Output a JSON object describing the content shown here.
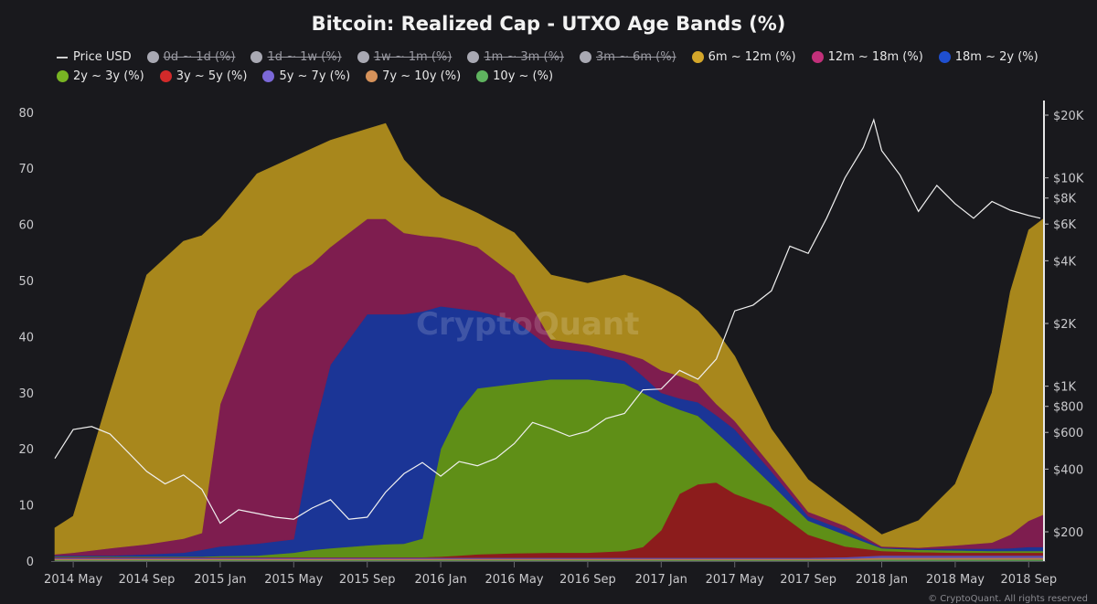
{
  "chart_data": {
    "type": "area",
    "stacked": true,
    "title": "Bitcoin: Realized Cap - UTXO Age Bands (%)",
    "ylabel_left": "%",
    "ylim": [
      0,
      80
    ],
    "yticks_left": [
      0,
      10,
      20,
      30,
      40,
      50,
      60,
      70,
      80
    ],
    "yticks_right": [
      {
        "value": 20000,
        "label": "$20K"
      },
      {
        "value": 10000,
        "label": "$10K"
      },
      {
        "value": 8000,
        "label": "$8K"
      },
      {
        "value": 6000,
        "label": "$6K"
      },
      {
        "value": 4000,
        "label": "$4K"
      },
      {
        "value": 2000,
        "label": "$2K"
      },
      {
        "value": 1000,
        "label": "$1K"
      },
      {
        "value": 800,
        "label": "$800"
      },
      {
        "value": 600,
        "label": "$600"
      },
      {
        "value": 400,
        "label": "$400"
      },
      {
        "value": 200,
        "label": "$200"
      }
    ],
    "right_scale": "log",
    "xlim": [
      "2014-03-25",
      "2018-09-25"
    ],
    "xticks": [
      {
        "date": "2014-05-01",
        "label": "2014 May"
      },
      {
        "date": "2014-09-01",
        "label": "2014 Sep"
      },
      {
        "date": "2015-01-01",
        "label": "2015 Jan"
      },
      {
        "date": "2015-05-01",
        "label": "2015 May"
      },
      {
        "date": "2015-09-01",
        "label": "2015 Sep"
      },
      {
        "date": "2016-01-01",
        "label": "2016 Jan"
      },
      {
        "date": "2016-05-01",
        "label": "2016 May"
      },
      {
        "date": "2016-09-01",
        "label": "2016 Sep"
      },
      {
        "date": "2017-01-01",
        "label": "2017 Jan"
      },
      {
        "date": "2017-05-01",
        "label": "2017 May"
      },
      {
        "date": "2017-09-01",
        "label": "2017 Sep"
      },
      {
        "date": "2018-01-01",
        "label": "2018 Jan"
      },
      {
        "date": "2018-05-01",
        "label": "2018 May"
      },
      {
        "date": "2018-09-01",
        "label": "2018 Sep"
      }
    ],
    "legend": [
      {
        "label": "Price USD",
        "type": "line",
        "color": "#d0d0d0",
        "enabled": true
      },
      {
        "label": "0d ~ 1d (%)",
        "color": "#a9a9b3",
        "enabled": false
      },
      {
        "label": "1d ~ 1w (%)",
        "color": "#a9a9b3",
        "enabled": false
      },
      {
        "label": "1w ~ 1m (%)",
        "color": "#a9a9b3",
        "enabled": false
      },
      {
        "label": "1m ~ 3m (%)",
        "color": "#a9a9b3",
        "enabled": false
      },
      {
        "label": "3m ~ 6m (%)",
        "color": "#a9a9b3",
        "enabled": false
      },
      {
        "label": "6m ~ 12m (%)",
        "color": "#d4a62a",
        "enabled": true
      },
      {
        "label": "12m ~ 18m (%)",
        "color": "#c2307a",
        "enabled": true
      },
      {
        "label": "18m ~ 2y (%)",
        "color": "#1f4fd0",
        "enabled": true
      },
      {
        "label": "2y ~ 3y (%)",
        "color": "#78b423",
        "enabled": true
      },
      {
        "label": "3y ~ 5y (%)",
        "color": "#d22a2a",
        "enabled": true
      },
      {
        "label": "5y ~ 7y (%)",
        "color": "#7b68d8",
        "enabled": true
      },
      {
        "label": "7y ~ 10y (%)",
        "color": "#d6925a",
        "enabled": true
      },
      {
        "label": "10y ~ (%)",
        "color": "#5fb35f",
        "enabled": true
      }
    ],
    "dates": [
      "2014-04-01",
      "2014-05-01",
      "2014-07-01",
      "2014-09-01",
      "2014-11-01",
      "2014-12-01",
      "2015-01-01",
      "2015-03-01",
      "2015-05-01",
      "2015-06-01",
      "2015-07-01",
      "2015-09-01",
      "2015-10-01",
      "2015-11-01",
      "2015-12-01",
      "2016-01-01",
      "2016-02-01",
      "2016-03-01",
      "2016-05-01",
      "2016-07-01",
      "2016-09-01",
      "2016-11-01",
      "2016-12-01",
      "2017-01-01",
      "2017-02-01",
      "2017-03-01",
      "2017-04-01",
      "2017-05-01",
      "2017-07-01",
      "2017-09-01",
      "2017-11-01",
      "2018-01-01",
      "2018-03-01",
      "2018-05-01",
      "2018-07-01",
      "2018-08-01",
      "2018-09-01",
      "2018-09-25"
    ],
    "series": [
      {
        "name": "10y ~ (%)",
        "fill": "#4f8f4f",
        "values": [
          0.2,
          0.2,
          0.2,
          0.2,
          0.2,
          0.2,
          0.2,
          0.2,
          0.2,
          0.2,
          0.2,
          0.2,
          0.2,
          0.2,
          0.2,
          0.2,
          0.2,
          0.2,
          0.2,
          0.2,
          0.2,
          0.2,
          0.2,
          0.2,
          0.2,
          0.2,
          0.2,
          0.2,
          0.2,
          0.2,
          0.2,
          0.3,
          0.3,
          0.3,
          0.3,
          0.3,
          0.3,
          0.3
        ]
      },
      {
        "name": "7y ~ 10y (%)",
        "fill": "#b8784a",
        "values": [
          0.2,
          0.2,
          0.2,
          0.2,
          0.2,
          0.2,
          0.2,
          0.2,
          0.2,
          0.2,
          0.2,
          0.2,
          0.2,
          0.2,
          0.2,
          0.2,
          0.2,
          0.2,
          0.2,
          0.2,
          0.2,
          0.2,
          0.2,
          0.2,
          0.2,
          0.2,
          0.2,
          0.2,
          0.2,
          0.2,
          0.2,
          0.3,
          0.3,
          0.3,
          0.3,
          0.3,
          0.3,
          0.3
        ]
      },
      {
        "name": "5y ~ 7y (%)",
        "fill": "#5b4fb0",
        "values": [
          0.2,
          0.2,
          0.2,
          0.2,
          0.2,
          0.2,
          0.2,
          0.2,
          0.2,
          0.2,
          0.2,
          0.2,
          0.2,
          0.2,
          0.2,
          0.2,
          0.2,
          0.2,
          0.2,
          0.2,
          0.2,
          0.2,
          0.2,
          0.2,
          0.2,
          0.2,
          0.2,
          0.2,
          0.2,
          0.2,
          0.3,
          0.4,
          0.4,
          0.4,
          0.4,
          0.4,
          0.4,
          0.4
        ]
      },
      {
        "name": "3y ~ 5y (%)",
        "fill": "#8c1c1c",
        "values": [
          0.1,
          0.1,
          0.1,
          0.1,
          0.1,
          0.1,
          0.1,
          0.1,
          0.1,
          0.1,
          0.1,
          0.1,
          0.1,
          0.1,
          0.1,
          0.2,
          0.4,
          0.6,
          0.8,
          0.9,
          0.9,
          1.2,
          1.9,
          4.9,
          11.4,
          13.1,
          13.4,
          11.4,
          9.0,
          4.1,
          1.9,
          0.8,
          0.6,
          0.5,
          0.5,
          0.5,
          0.5,
          0.5
        ]
      },
      {
        "name": "2y ~ 3y (%)",
        "fill": "#5f8f17",
        "values": [
          0.1,
          0.1,
          0.1,
          0.1,
          0.1,
          0.1,
          0.2,
          0.3,
          0.8,
          1.3,
          1.6,
          2.1,
          2.3,
          2.4,
          3.3,
          19.2,
          25.7,
          29.6,
          30.2,
          30.9,
          30.9,
          29.8,
          27.5,
          22.8,
          15.0,
          12.2,
          9.0,
          8.0,
          4.1,
          2.5,
          2.1,
          0.5,
          0.4,
          0.4,
          0.3,
          0.3,
          0.3,
          0.3
        ]
      },
      {
        "name": "18m ~ 2y (%)",
        "fill": "#1b3596",
        "values": [
          0.2,
          0.2,
          0.2,
          0.4,
          0.7,
          1.2,
          1.7,
          2.1,
          2.4,
          20.0,
          32.7,
          41.2,
          41.0,
          40.9,
          40.5,
          25.4,
          18.3,
          13.8,
          11.4,
          5.6,
          4.9,
          4.1,
          3.0,
          1.7,
          2.0,
          2.4,
          3.0,
          3.5,
          2.3,
          0.8,
          0.8,
          0.1,
          0.2,
          0.3,
          0.4,
          0.5,
          0.7,
          0.7
        ]
      },
      {
        "name": "12m ~ 18m (%)",
        "fill": "#7e1d4f",
        "values": [
          0.2,
          0.5,
          1.3,
          1.8,
          2.5,
          3.0,
          25.4,
          41.5,
          47.1,
          31.0,
          21.0,
          17.0,
          17.0,
          14.5,
          13.5,
          12.3,
          12.0,
          11.4,
          8.0,
          1.5,
          1.2,
          1.3,
          3.0,
          4.0,
          4.0,
          3.3,
          2.0,
          1.5,
          1.0,
          0.8,
          0.8,
          0.2,
          0.2,
          0.6,
          1.1,
          2.4,
          4.7,
          5.8
        ]
      },
      {
        "name": "6m ~ 12m (%)",
        "fill": "#a8871c",
        "values": [
          4.7,
          6.5,
          27.7,
          48.0,
          53.0,
          53.0,
          33.0,
          24.4,
          21.0,
          20.5,
          19.0,
          16.0,
          17.0,
          13.0,
          10.0,
          7.3,
          6.5,
          6.0,
          7.5,
          11.5,
          11.0,
          14.0,
          14.0,
          14.7,
          14.0,
          13.0,
          13.0,
          11.5,
          6.5,
          5.7,
          3.3,
          2.1,
          4.8,
          10.9,
          26.7,
          43.3,
          51.8,
          52.7
        ]
      }
    ],
    "price": {
      "name": "Price USD",
      "dates": [
        "2014-04-01",
        "2014-05-01",
        "2014-06-01",
        "2014-07-01",
        "2014-08-01",
        "2014-09-01",
        "2014-10-01",
        "2014-11-01",
        "2014-12-01",
        "2015-01-01",
        "2015-02-01",
        "2015-03-01",
        "2015-04-01",
        "2015-05-01",
        "2015-06-01",
        "2015-07-01",
        "2015-08-01",
        "2015-09-01",
        "2015-10-01",
        "2015-11-01",
        "2015-12-01",
        "2016-01-01",
        "2016-02-01",
        "2016-03-01",
        "2016-04-01",
        "2016-05-01",
        "2016-06-01",
        "2016-07-01",
        "2016-08-01",
        "2016-09-01",
        "2016-10-01",
        "2016-11-01",
        "2016-12-01",
        "2017-01-01",
        "2017-02-01",
        "2017-03-01",
        "2017-04-01",
        "2017-05-01",
        "2017-06-01",
        "2017-07-01",
        "2017-08-01",
        "2017-09-01",
        "2017-10-01",
        "2017-11-01",
        "2017-12-01",
        "2017-12-18",
        "2018-01-01",
        "2018-02-01",
        "2018-03-01",
        "2018-04-01",
        "2018-05-01",
        "2018-06-01",
        "2018-07-01",
        "2018-08-01",
        "2018-09-01",
        "2018-09-20"
      ],
      "values": [
        450,
        620,
        640,
        590,
        480,
        390,
        340,
        375,
        320,
        220,
        255,
        245,
        235,
        230,
        260,
        285,
        230,
        235,
        310,
        380,
        430,
        370,
        435,
        415,
        450,
        530,
        670,
        625,
        575,
        608,
        700,
        740,
        960,
        970,
        1190,
        1080,
        1350,
        2300,
        2450,
        2870,
        4700,
        4340,
        6400,
        10000,
        14000,
        19000,
        13500,
        10300,
        6900,
        9200,
        7500,
        6400,
        7700,
        7000,
        6600,
        6400
      ]
    },
    "watermark": "CryptoQuant"
  },
  "footer": "© CryptoQuant. All rights reserved"
}
